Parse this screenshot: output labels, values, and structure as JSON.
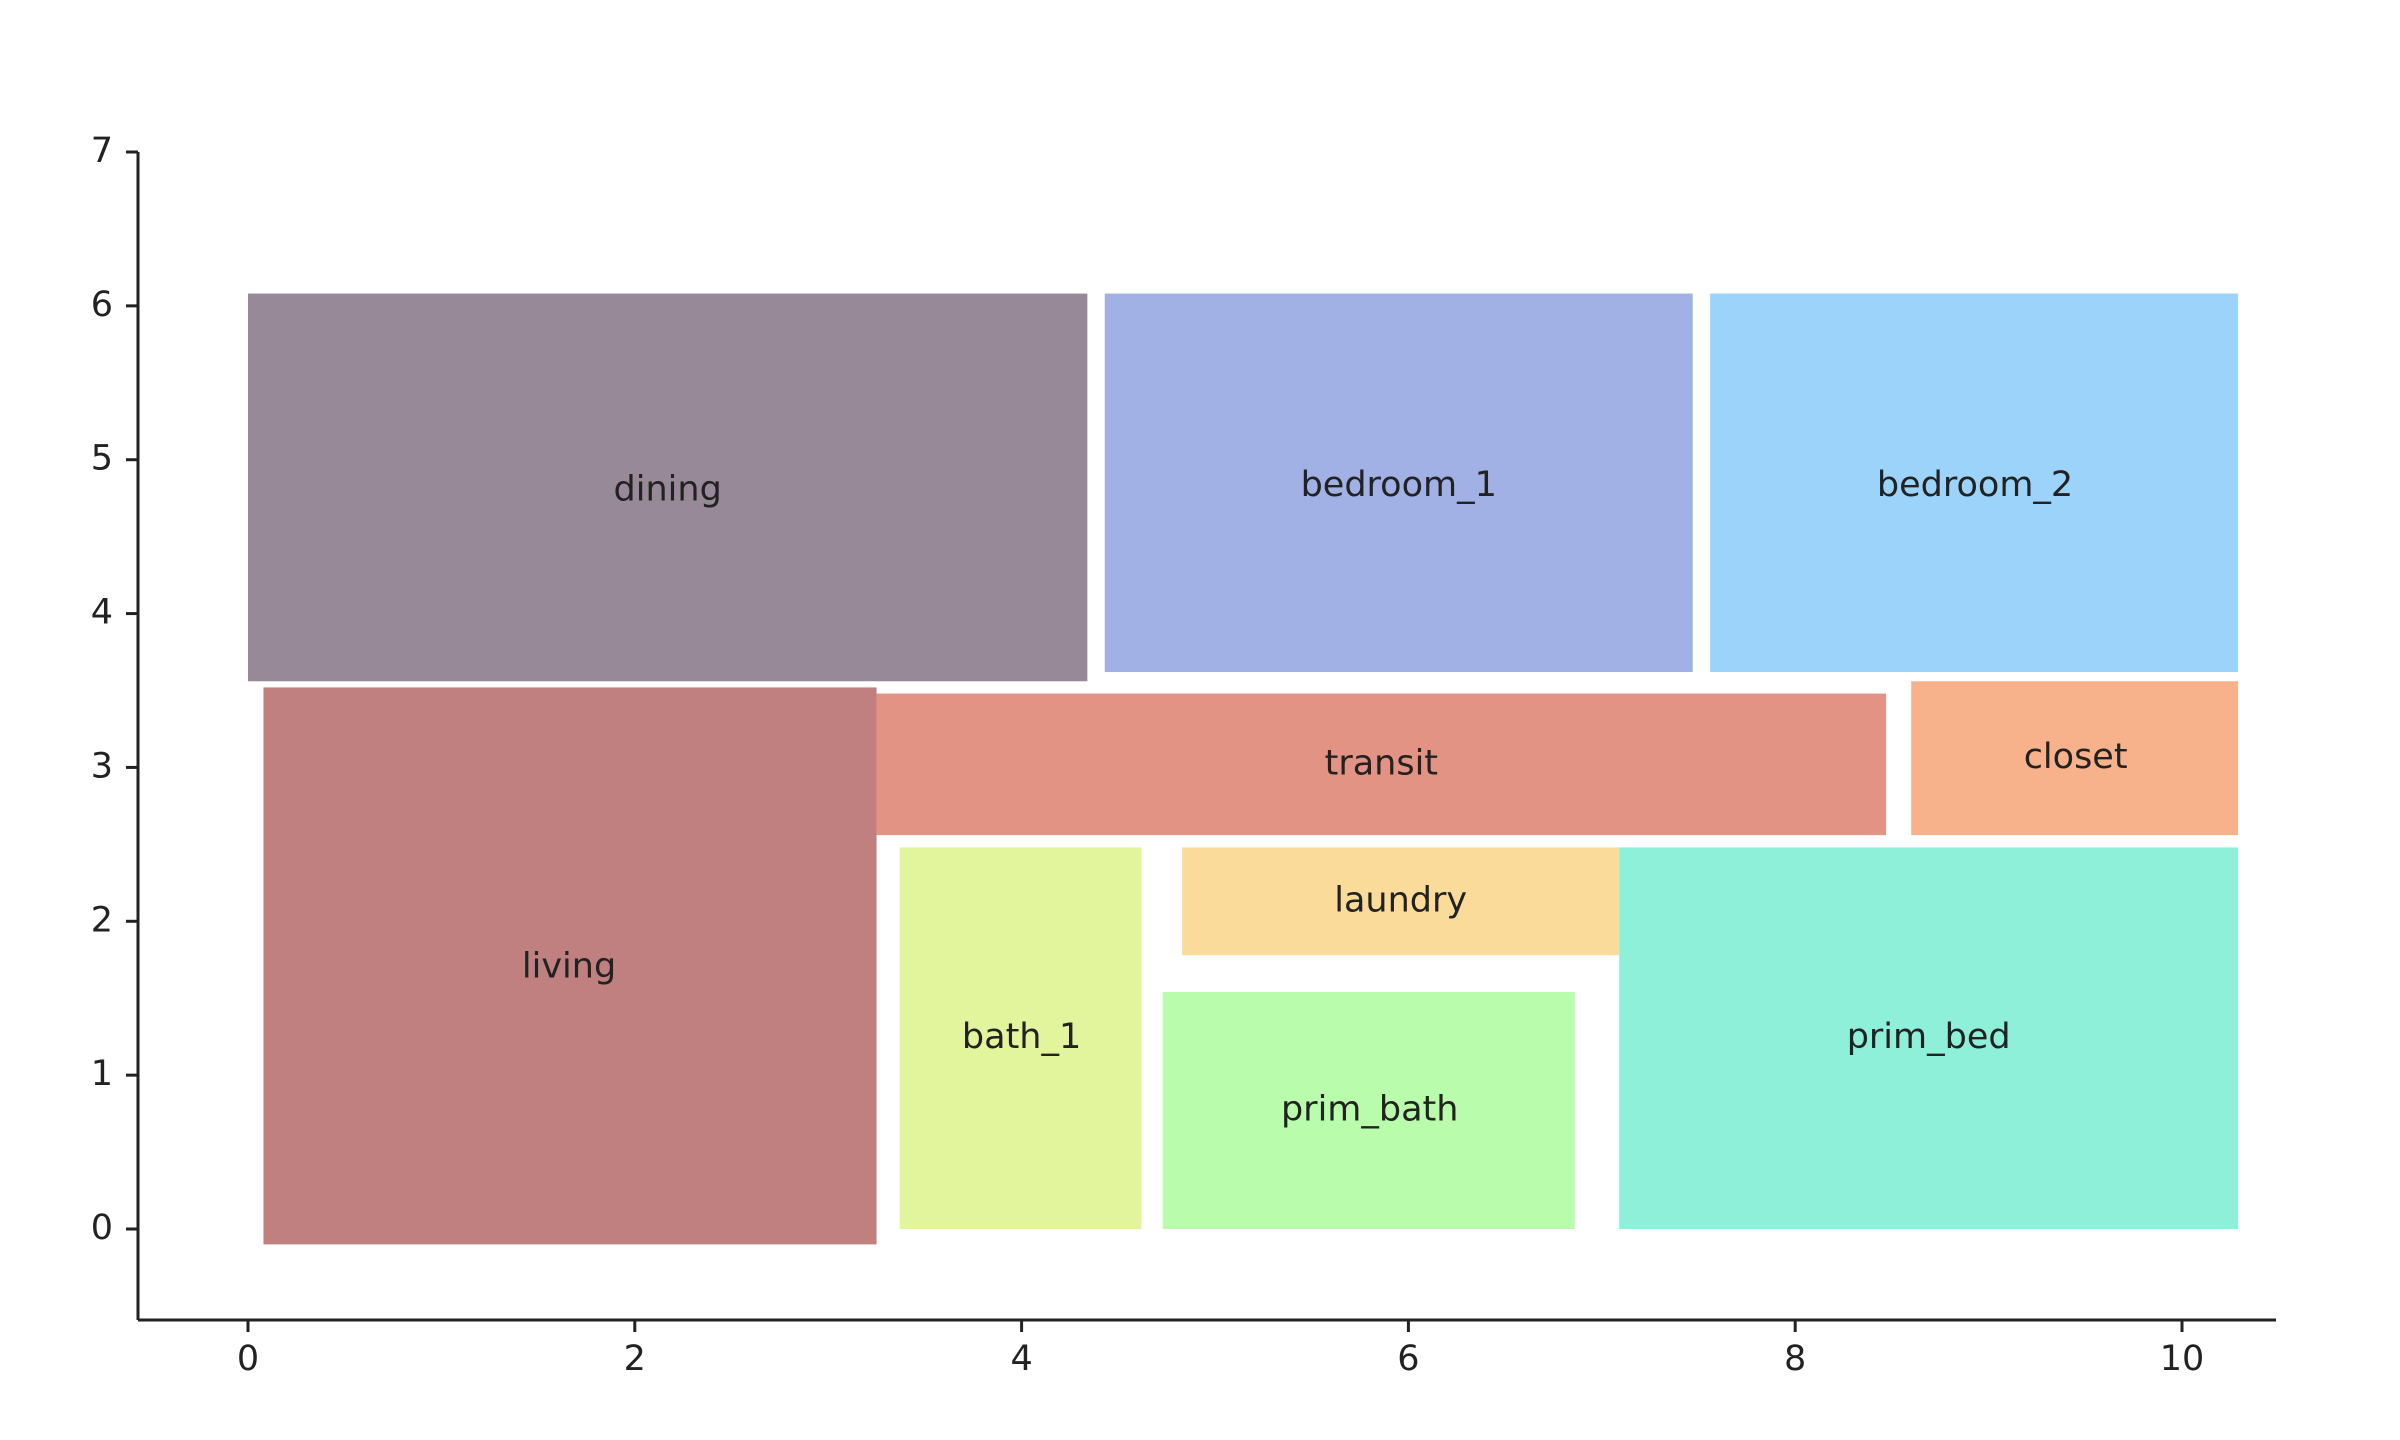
{
  "chart_data": {
    "type": "floorplan-rectangles",
    "title": "",
    "xlabel": "",
    "ylabel": "",
    "xlim": [
      -0.57,
      10.5
    ],
    "ylim": [
      -0.6,
      7
    ],
    "xticks": [
      0,
      2,
      4,
      6,
      8,
      10
    ],
    "yticks": [
      0,
      1,
      2,
      3,
      4,
      5,
      6,
      7
    ],
    "grid": false,
    "legend": "none",
    "rooms": [
      {
        "name": "dining",
        "x0": 0.0,
        "x1": 4.34,
        "y0": 3.56,
        "y1": 6.08,
        "color": "#988999",
        "label_x": 2.17,
        "label_y": 4.8
      },
      {
        "name": "bedroom_1",
        "x0": 4.43,
        "x1": 7.47,
        "y0": 3.62,
        "y1": 6.08,
        "color": "#A1B1E5",
        "label_x": 5.95,
        "label_y": 4.83
      },
      {
        "name": "bedroom_2",
        "x0": 7.56,
        "x1": 10.29,
        "y0": 3.62,
        "y1": 6.08,
        "color": "#9CD3FA",
        "label_x": 8.93,
        "label_y": 4.83
      },
      {
        "name": "transit",
        "x0": 3.25,
        "x1": 8.47,
        "y0": 2.56,
        "y1": 3.48,
        "color": "#E39383",
        "label_x": 5.86,
        "label_y": 3.02
      },
      {
        "name": "closet",
        "x0": 8.6,
        "x1": 10.29,
        "y0": 2.56,
        "y1": 3.56,
        "color": "#F7B18B",
        "label_x": 9.45,
        "label_y": 3.06
      },
      {
        "name": "living",
        "x0": 0.08,
        "x1": 3.25,
        "y0": -0.1,
        "y1": 3.52,
        "color": "#BF807F",
        "label_x": 1.66,
        "label_y": 1.7
      },
      {
        "name": "bath_1",
        "x0": 3.37,
        "x1": 4.62,
        "y0": 0.0,
        "y1": 2.48,
        "color": "#E3F59C",
        "label_x": 4.0,
        "label_y": 1.24
      },
      {
        "name": "laundry",
        "x0": 4.83,
        "x1": 7.09,
        "y0": 1.78,
        "y1": 2.48,
        "color": "#FADB9A",
        "label_x": 5.96,
        "label_y": 2.13
      },
      {
        "name": "prim_bath",
        "x0": 4.73,
        "x1": 6.86,
        "y0": 0.0,
        "y1": 1.54,
        "color": "#B8FCAC",
        "label_x": 5.8,
        "label_y": 0.77
      },
      {
        "name": "prim_bed",
        "x0": 7.09,
        "x1": 10.29,
        "y0": 0.0,
        "y1": 2.48,
        "color": "#8EF0D8",
        "label_x": 8.69,
        "label_y": 1.24
      }
    ]
  }
}
